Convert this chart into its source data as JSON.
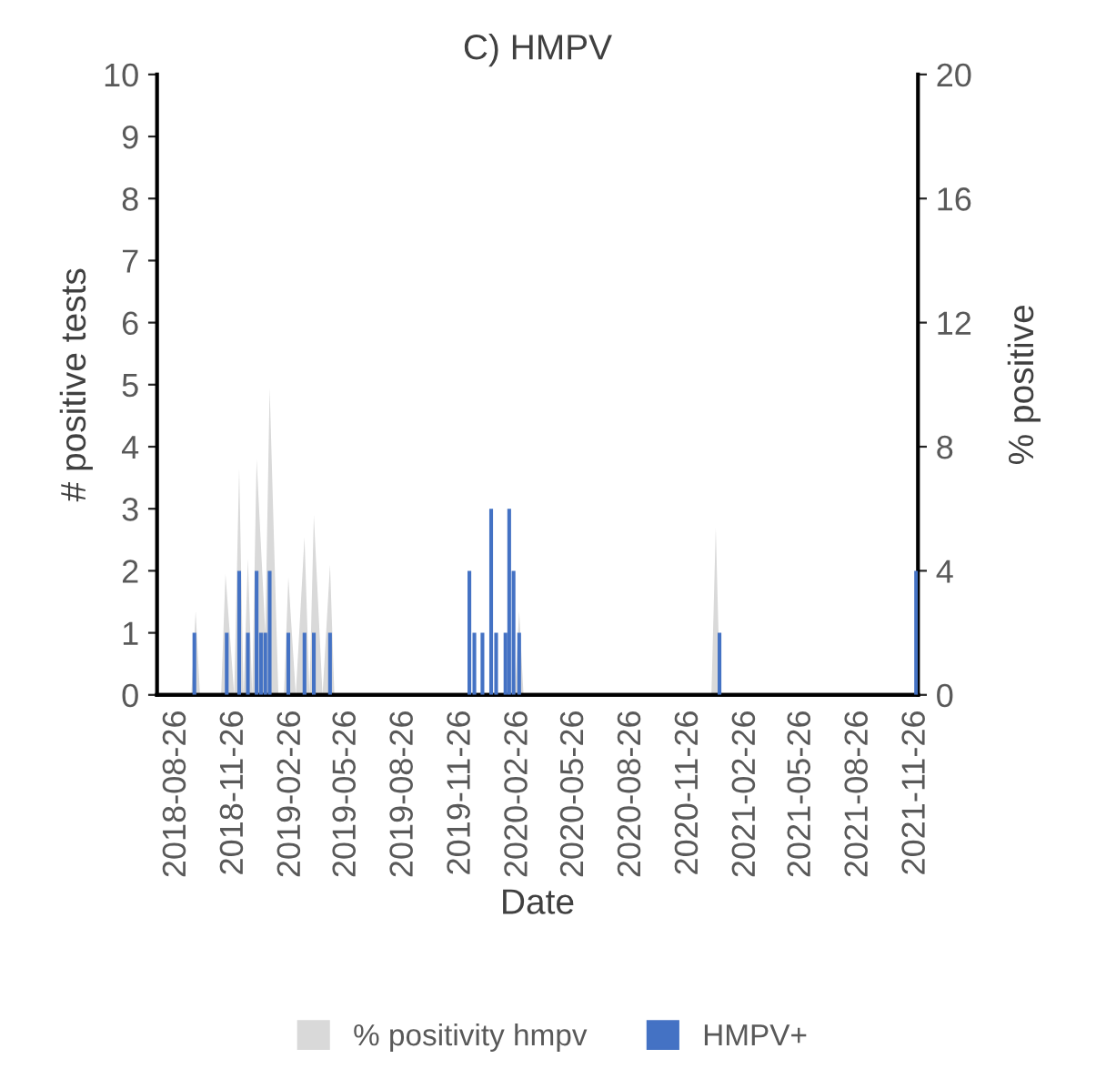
{
  "chart_data": {
    "type": "bar",
    "title": "C) HMPV",
    "xlabel": "Date",
    "ylabel": "# positive tests",
    "y2label": "% positive",
    "xlim": [
      "2018-07-25",
      "2021-11-29"
    ],
    "xticks": [
      "2018-08-26",
      "2018-11-26",
      "2019-02-26",
      "2019-05-26",
      "2019-08-26",
      "2019-11-26",
      "2020-02-26",
      "2020-05-26",
      "2020-08-26",
      "2020-11-26",
      "2021-02-26",
      "2021-05-26",
      "2021-08-26",
      "2021-11-26"
    ],
    "ylim": [
      0,
      10
    ],
    "yticks": [
      0,
      1,
      2,
      3,
      4,
      5,
      6,
      7,
      8,
      9,
      10
    ],
    "y2lim": [
      0,
      20
    ],
    "y2ticks": [
      0,
      4,
      8,
      12,
      16,
      20
    ],
    "grid": false,
    "legend": "bottom",
    "series": [
      {
        "name": "% positivity hmpv",
        "type": "area",
        "axis": "y2",
        "color": "#d9d9d9",
        "x": [
          "2018-09-18",
          "2018-09-25",
          "2018-10-02",
          "2018-11-05",
          "2018-11-12",
          "2018-11-26",
          "2018-12-04",
          "2018-12-11",
          "2018-12-18",
          "2018-12-25",
          "2019-01-01",
          "2019-01-15",
          "2019-01-22",
          "2019-02-05",
          "2019-02-14",
          "2019-02-21",
          "2019-03-05",
          "2019-03-19",
          "2019-03-27",
          "2019-04-03",
          "2019-04-17",
          "2019-04-29",
          "2019-05-06",
          "2020-02-20",
          "2020-02-27",
          "2020-03-05",
          "2021-01-01",
          "2021-01-08",
          "2021-01-15"
        ],
        "values": [
          0,
          2.7,
          0,
          0,
          3.9,
          0,
          7.3,
          0,
          4.4,
          0,
          7.6,
          2,
          9.9,
          0,
          0,
          3.8,
          0,
          5.1,
          0,
          5.8,
          0,
          4.2,
          0,
          0,
          2.7,
          0,
          0,
          5.4,
          0
        ]
      },
      {
        "name": "HMPV+",
        "axis": "y",
        "color": "#4472c4",
        "x": [
          "2018-09-23",
          "2018-11-14",
          "2018-12-04",
          "2018-12-18",
          "2019-01-01",
          "2019-01-08",
          "2019-01-15",
          "2019-01-22",
          "2019-02-21",
          "2019-03-19",
          "2019-04-03",
          "2019-04-29",
          "2019-12-09",
          "2019-12-17",
          "2019-12-30",
          "2020-01-13",
          "2020-01-21",
          "2020-02-05",
          "2020-02-11",
          "2020-02-18",
          "2020-02-27",
          "2021-01-14",
          "2021-11-26"
        ],
        "values": [
          1,
          1,
          2,
          1,
          2,
          1,
          1,
          2,
          1,
          1,
          1,
          1,
          2,
          1,
          1,
          3,
          1,
          1,
          3,
          2,
          1,
          1,
          2
        ]
      }
    ]
  }
}
